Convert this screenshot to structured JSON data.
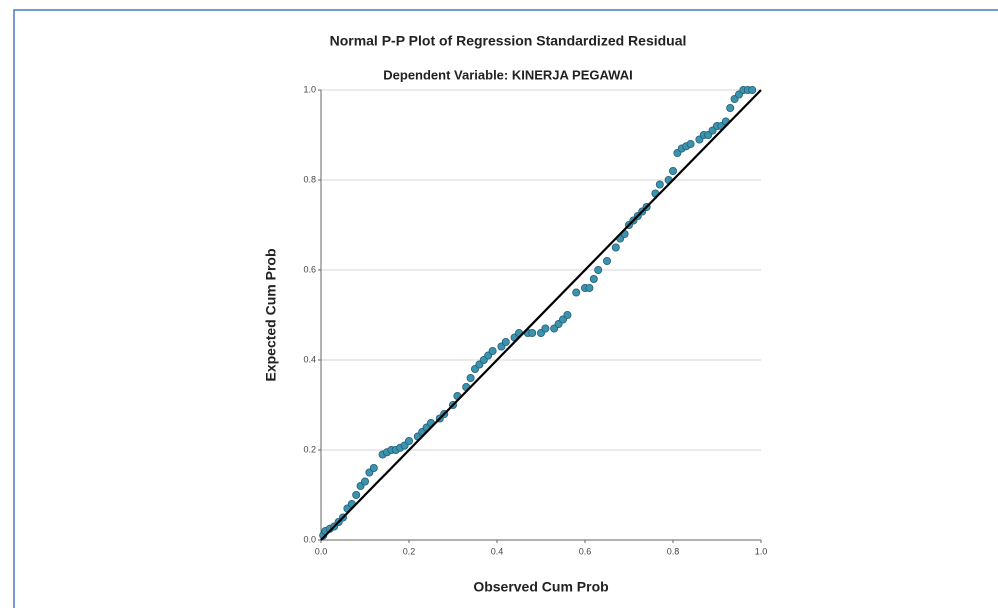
{
  "chart_data": {
    "type": "scatter",
    "title": "Normal P-P Plot of Regression Standardized Residual",
    "subtitle": "Dependent Variable: KINERJA PEGAWAI",
    "x_label": "Observed Cum Prob",
    "y_label": "Expected Cum Prob",
    "color": "#3d93ad",
    "reference_line": true,
    "grid": true,
    "xlim": [
      0,
      1
    ],
    "ylim": [
      0,
      1
    ],
    "xticks": [
      {
        "value": 0,
        "label": "0.0"
      },
      0.2,
      0.4,
      0.6,
      0.8,
      {
        "value": 1,
        "label": "1.0"
      }
    ],
    "yticks": [
      {
        "value": 0,
        "label": "0.0"
      },
      0.2,
      0.4,
      0.6,
      0.8,
      {
        "value": 1,
        "label": "1.0"
      }
    ],
    "x": [
      0.005,
      0.01,
      0.02,
      0.03,
      0.04,
      0.05,
      0.06,
      0.07,
      0.08,
      0.09,
      0.1,
      0.11,
      0.12,
      0.14,
      0.15,
      0.16,
      0.17,
      0.18,
      0.19,
      0.2,
      0.22,
      0.23,
      0.24,
      0.25,
      0.27,
      0.28,
      0.3,
      0.31,
      0.33,
      0.34,
      0.35,
      0.36,
      0.37,
      0.38,
      0.39,
      0.41,
      0.42,
      0.44,
      0.45,
      0.47,
      0.48,
      0.5,
      0.51,
      0.53,
      0.54,
      0.55,
      0.56,
      0.58,
      0.6,
      0.61,
      0.62,
      0.63,
      0.65,
      0.67,
      0.68,
      0.69,
      0.7,
      0.71,
      0.72,
      0.73,
      0.74,
      0.76,
      0.77,
      0.79,
      0.8,
      0.81,
      0.82,
      0.83,
      0.84,
      0.86,
      0.87,
      0.88,
      0.89,
      0.9,
      0.91,
      0.92,
      0.93,
      0.94,
      0.95,
      0.96,
      0.97,
      0.98
    ],
    "values": [
      0.01,
      0.02,
      0.025,
      0.03,
      0.04,
      0.05,
      0.07,
      0.08,
      0.1,
      0.12,
      0.13,
      0.15,
      0.16,
      0.19,
      0.195,
      0.2,
      0.2,
      0.205,
      0.21,
      0.22,
      0.23,
      0.24,
      0.25,
      0.26,
      0.27,
      0.28,
      0.3,
      0.32,
      0.34,
      0.36,
      0.38,
      0.39,
      0.4,
      0.41,
      0.42,
      0.43,
      0.44,
      0.45,
      0.46,
      0.46,
      0.46,
      0.46,
      0.47,
      0.47,
      0.48,
      0.49,
      0.5,
      0.55,
      0.56,
      0.56,
      0.58,
      0.6,
      0.62,
      0.65,
      0.67,
      0.68,
      0.7,
      0.71,
      0.72,
      0.73,
      0.74,
      0.77,
      0.79,
      0.8,
      0.82,
      0.86,
      0.87,
      0.875,
      0.88,
      0.89,
      0.9,
      0.9,
      0.91,
      0.92,
      0.92,
      0.93,
      0.96,
      0.98,
      0.99,
      1,
      1,
      1
    ]
  }
}
